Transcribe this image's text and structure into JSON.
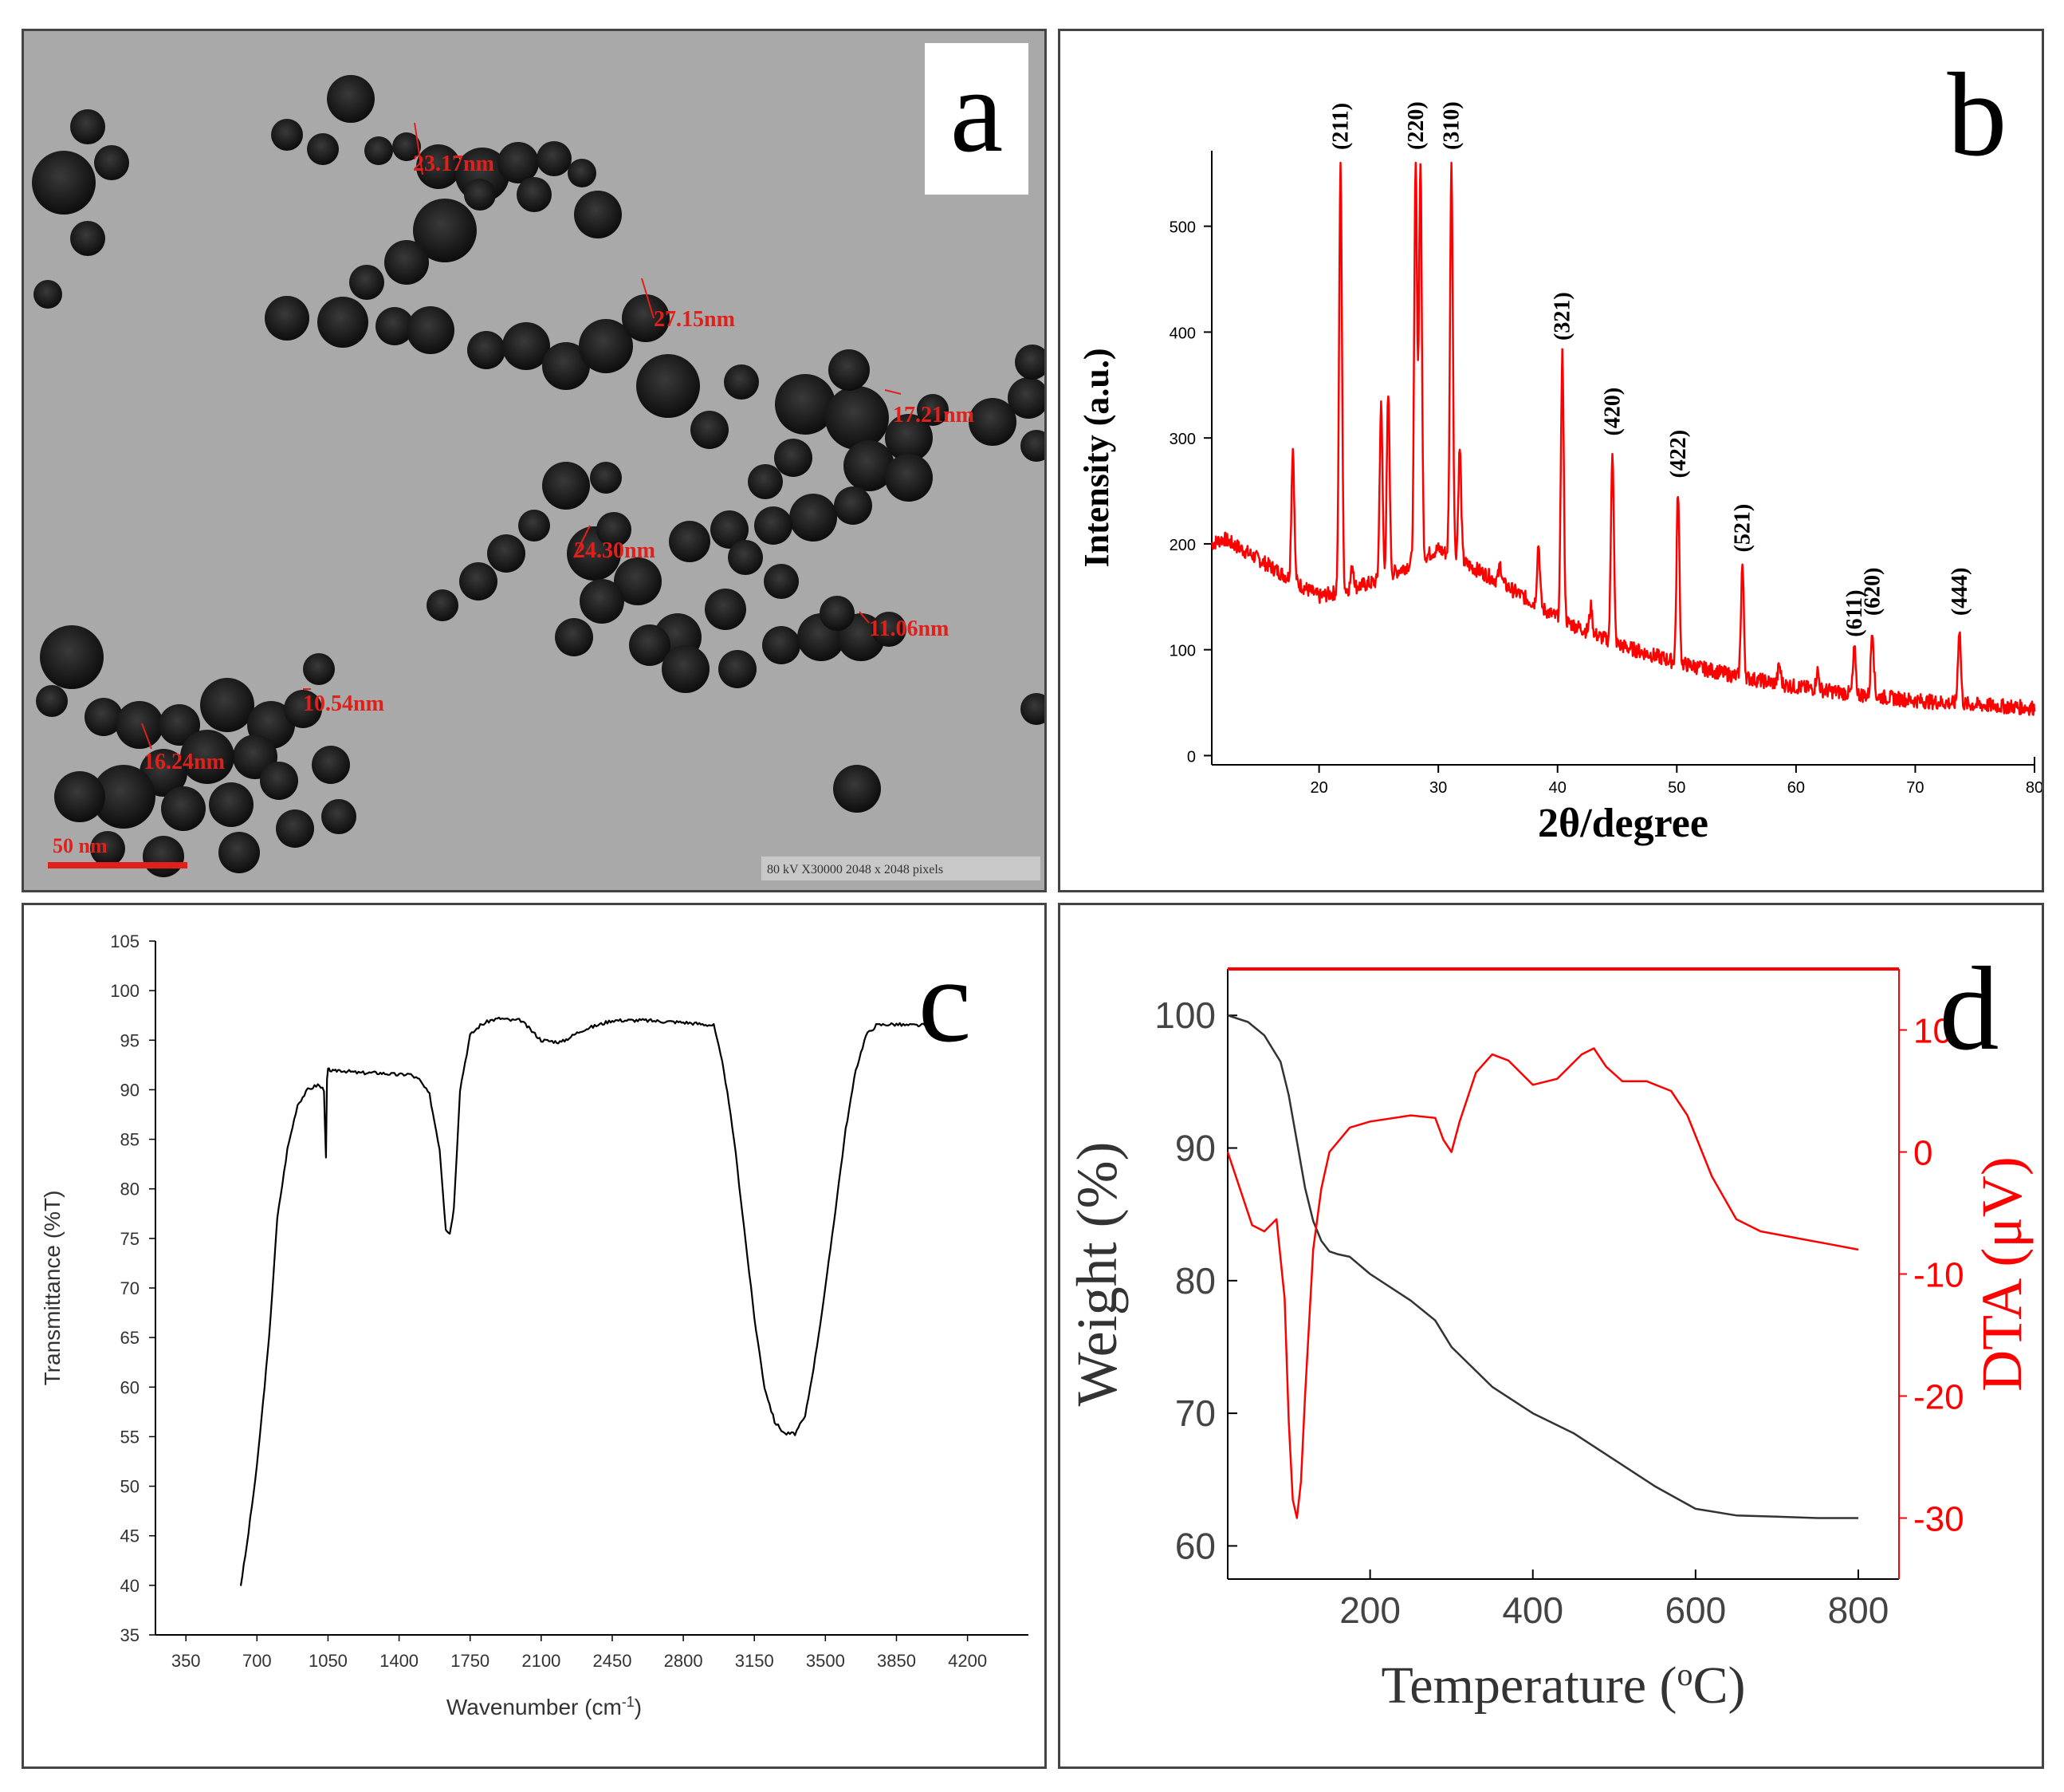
{
  "panel_a": {
    "letter": "a",
    "measurements": [
      "23.17nm",
      "27.15nm",
      "17.21nm",
      "24.30nm",
      "11.06nm",
      "10.54nm",
      "16.24nm"
    ],
    "scale_bar_label": "50 nm",
    "footer": "80 kV  X30000  2048 x 2048 pixels",
    "annotation_color": "#e0201a"
  },
  "panel_b": {
    "letter": "b",
    "color": "#ff0000"
  },
  "panel_c": {
    "letter": "c",
    "color": "#000000"
  },
  "panel_d": {
    "letter": "d",
    "weight_color": "#333333",
    "dta_color": "#ff0000"
  },
  "chart_data": [
    {
      "panel": "b",
      "type": "line",
      "title": "",
      "xlabel": "2θ/degree",
      "ylabel": "Intensity (a.u.)",
      "xlim": [
        11,
        80
      ],
      "ylim": [
        -20,
        560
      ],
      "xticks": [
        20,
        30,
        40,
        50,
        60,
        70,
        80
      ],
      "yticks": [
        0,
        100,
        200,
        300,
        400,
        500
      ],
      "baseline": {
        "x": [
          11,
          12,
          15,
          20,
          25,
          30,
          35,
          40,
          45,
          50,
          55,
          60,
          65,
          70,
          75,
          80
        ],
        "y": [
          200,
          205,
          185,
          150,
          165,
          195,
          165,
          130,
          105,
          88,
          75,
          65,
          58,
          52,
          48,
          45
        ]
      },
      "peaks": [
        {
          "x": 17.8,
          "y": 290,
          "label": ""
        },
        {
          "x": 21.8,
          "y": 560,
          "label": "(211)"
        },
        {
          "x": 22.8,
          "y": 180,
          "label": ""
        },
        {
          "x": 25.2,
          "y": 330,
          "label": ""
        },
        {
          "x": 25.8,
          "y": 340,
          "label": ""
        },
        {
          "x": 28.1,
          "y": 560,
          "label": "(220)"
        },
        {
          "x": 28.5,
          "y": 560,
          "label": ""
        },
        {
          "x": 31.1,
          "y": 560,
          "label": "(310)"
        },
        {
          "x": 31.8,
          "y": 290,
          "label": ""
        },
        {
          "x": 35.2,
          "y": 180,
          "label": ""
        },
        {
          "x": 38.4,
          "y": 200,
          "label": ""
        },
        {
          "x": 40.4,
          "y": 380,
          "label": "(321)"
        },
        {
          "x": 42.8,
          "y": 140,
          "label": ""
        },
        {
          "x": 44.6,
          "y": 290,
          "label": "(420)"
        },
        {
          "x": 50.1,
          "y": 250,
          "label": "(422)"
        },
        {
          "x": 55.5,
          "y": 180,
          "label": "(521)"
        },
        {
          "x": 58.6,
          "y": 85,
          "label": ""
        },
        {
          "x": 61.8,
          "y": 80,
          "label": ""
        },
        {
          "x": 64.9,
          "y": 100,
          "label": "(611)"
        },
        {
          "x": 66.4,
          "y": 120,
          "label": "(620)"
        },
        {
          "x": 73.7,
          "y": 120,
          "label": "(444)"
        }
      ]
    },
    {
      "panel": "c",
      "type": "line",
      "title": "",
      "xlabel": "Wavenumber (cm",
      "xlabel_sup": "-1",
      "xlabel_close": ")",
      "ylabel": "Transmittance (%T)",
      "xlim": [
        200,
        4500
      ],
      "ylim": [
        35,
        105
      ],
      "xticks": [
        350,
        700,
        1050,
        1400,
        1750,
        2100,
        2450,
        2800,
        3150,
        3500,
        3850,
        4200
      ],
      "yticks": [
        35,
        40,
        45,
        50,
        55,
        60,
        65,
        70,
        75,
        80,
        85,
        90,
        95,
        100,
        105
      ],
      "x": [
        620,
        650,
        700,
        760,
        800,
        850,
        900,
        950,
        1000,
        1030,
        1040,
        1045,
        1050,
        1060,
        1080,
        1100,
        1200,
        1300,
        1400,
        1450,
        1500,
        1550,
        1600,
        1630,
        1650,
        1670,
        1700,
        1750,
        1800,
        1850,
        1900,
        1950,
        2000,
        2100,
        2200,
        2300,
        2450,
        2600,
        2800,
        2950,
        3000,
        3050,
        3100,
        3150,
        3200,
        3250,
        3300,
        3350,
        3400,
        3450,
        3500,
        3550,
        3600,
        3650,
        3700,
        3750,
        3800,
        3850,
        3900,
        3950,
        4000
      ],
      "y": [
        40,
        44,
        52,
        65,
        77,
        84,
        88.5,
        90,
        90.5,
        90,
        83,
        91,
        92,
        92,
        91.8,
        92,
        91.7,
        91.7,
        91.5,
        91.6,
        91,
        89.5,
        84,
        76,
        75.5,
        78,
        90,
        95.5,
        96.5,
        97,
        97.2,
        97,
        97,
        95,
        94.8,
        96,
        97,
        97,
        96.8,
        96.5,
        92,
        85,
        76,
        67,
        60,
        56.5,
        55.3,
        55.3,
        57,
        63,
        70,
        78,
        86,
        92,
        95.5,
        96.5,
        96.6,
        96.6,
        96.5,
        96.5,
        96.5
      ]
    },
    {
      "panel": "d",
      "type": "line",
      "title": "",
      "xlabel": "Temperature (",
      "xlabel_sup": "o",
      "xlabel_close": "C)",
      "ylabel_left": "Weight (%)",
      "ylabel_right": "DTA (μV)",
      "xlim": [
        25,
        850
      ],
      "ylim_left": [
        57.5,
        103.5
      ],
      "ylim_right": [
        -35,
        15
      ],
      "xticks": [
        200,
        400,
        600,
        800
      ],
      "yticks_left": [
        60,
        70,
        80,
        90,
        100
      ],
      "yticks_right": [
        -30,
        -20,
        -10,
        0,
        10
      ],
      "dta_top_line": 15,
      "series": [
        {
          "name": "Weight",
          "axis": "left",
          "x": [
            25,
            50,
            70,
            90,
            100,
            110,
            120,
            130,
            140,
            150,
            160,
            175,
            200,
            250,
            280,
            300,
            350,
            400,
            450,
            500,
            550,
            600,
            650,
            700,
            750,
            800
          ],
          "y": [
            100,
            99.5,
            98.5,
            96.5,
            94,
            90.5,
            87,
            84.5,
            83,
            82.2,
            82,
            81.8,
            80.5,
            78.5,
            77,
            75,
            72,
            70,
            68.5,
            66.5,
            64.5,
            62.8,
            62.3,
            62.2,
            62.1,
            62.1
          ]
        },
        {
          "name": "DTA",
          "axis": "right",
          "x": [
            25,
            40,
            55,
            70,
            85,
            95,
            100,
            105,
            110,
            115,
            120,
            130,
            140,
            150,
            175,
            200,
            250,
            280,
            290,
            300,
            310,
            330,
            350,
            370,
            400,
            430,
            460,
            475,
            490,
            510,
            540,
            570,
            590,
            620,
            650,
            680,
            720,
            760,
            800
          ],
          "y": [
            0,
            -3,
            -6,
            -6.5,
            -5.5,
            -12,
            -22,
            -28.5,
            -30,
            -27,
            -20,
            -8,
            -3,
            0,
            2,
            2.5,
            3,
            2.8,
            1,
            0,
            2.5,
            6.5,
            8,
            7.5,
            5.5,
            6,
            8,
            8.5,
            7,
            5.8,
            5.8,
            5,
            3,
            -2,
            -5.5,
            -6.5,
            -7,
            -7.5,
            -8
          ]
        }
      ]
    }
  ]
}
